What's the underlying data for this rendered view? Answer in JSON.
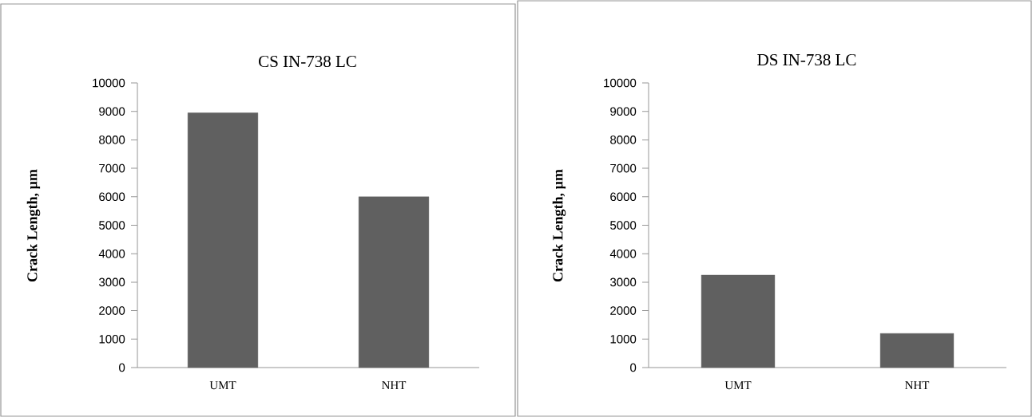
{
  "chart_data": [
    {
      "type": "bar",
      "title": "CS IN-738 LC",
      "ylabel": "Crack Length, µm",
      "categories": [
        "UMT",
        "NHT"
      ],
      "values": [
        8950,
        6000
      ],
      "color": "#606060",
      "ylim": [
        0,
        10000
      ],
      "yticks": [
        0,
        1000,
        2000,
        3000,
        4000,
        5000,
        6000,
        7000,
        8000,
        9000,
        10000
      ]
    },
    {
      "type": "bar",
      "title": "DS IN-738 LC",
      "ylabel": "Crack Length,  µm",
      "categories": [
        "UMT",
        "NHT"
      ],
      "values": [
        3250,
        1200
      ],
      "color": "#606060",
      "ylim": [
        0,
        10000
      ],
      "yticks": [
        0,
        1000,
        2000,
        3000,
        4000,
        5000,
        6000,
        7000,
        8000,
        9000,
        10000
      ]
    }
  ]
}
